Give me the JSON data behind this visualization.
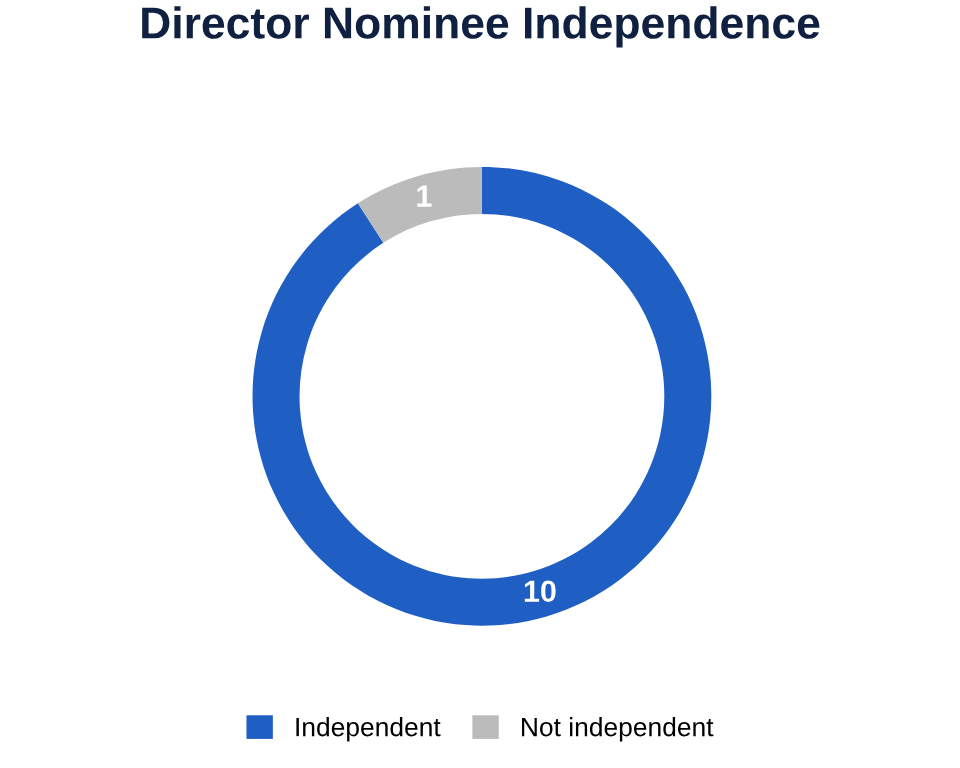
{
  "chart_data": {
    "type": "donut",
    "title": "Director Nominee Independence",
    "categories": [
      "Independent",
      "Not independent"
    ],
    "values": [
      10,
      1
    ],
    "colors": [
      "#1f5fc4",
      "#bbbbbb"
    ],
    "data_labels": true,
    "legend": "bottom"
  }
}
